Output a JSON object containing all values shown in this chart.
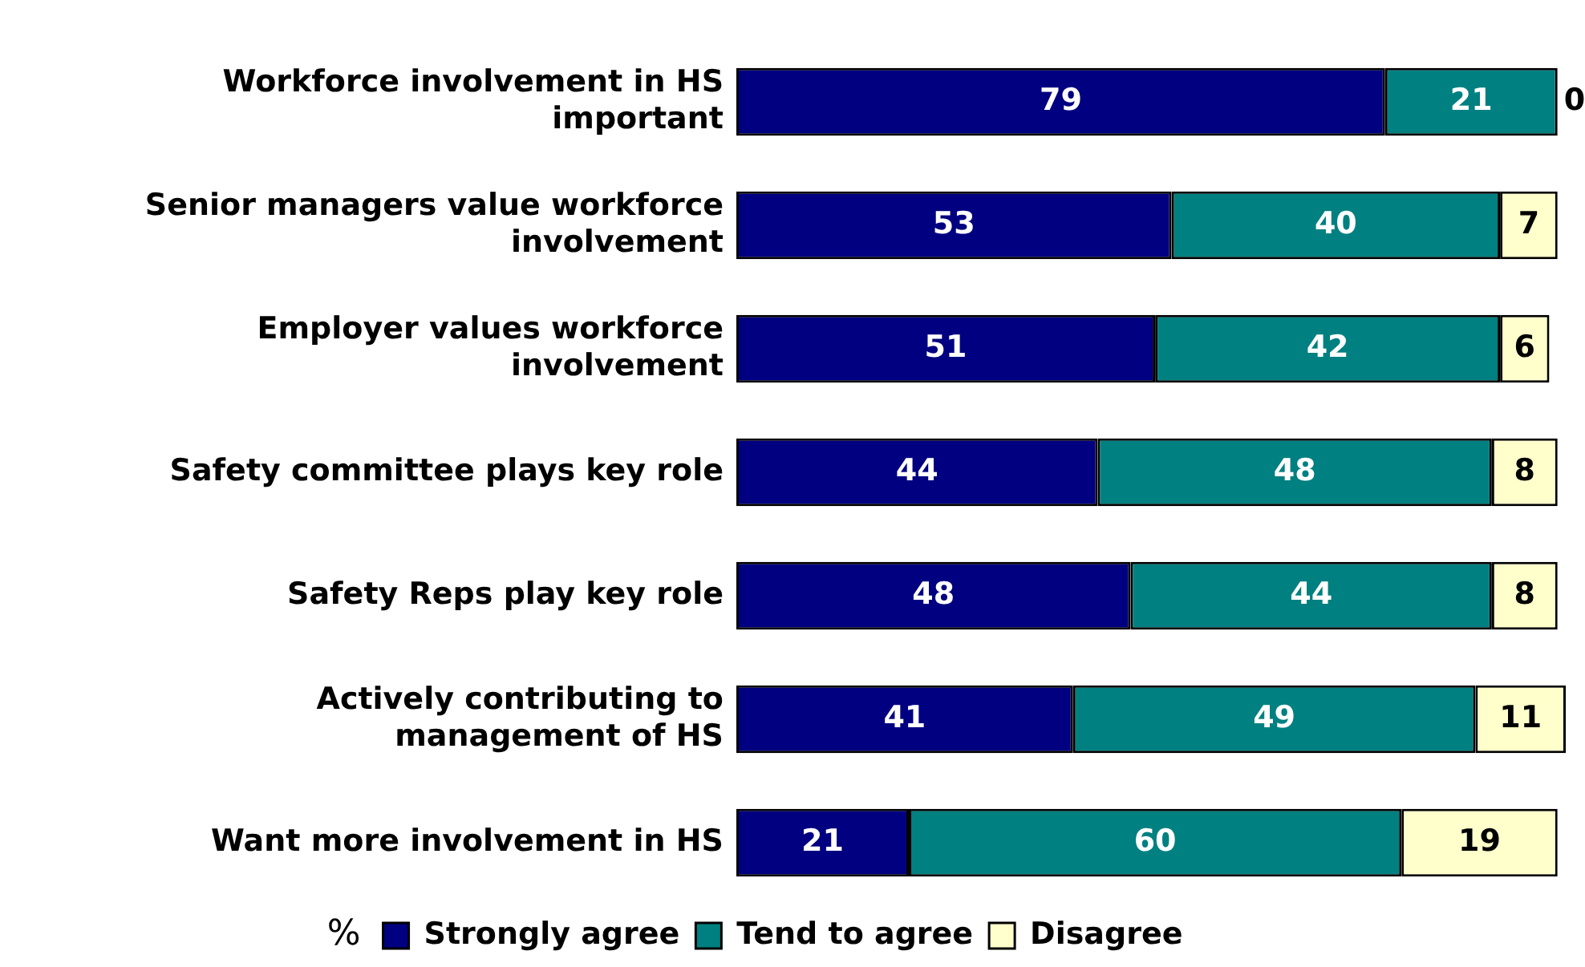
{
  "chart_data": {
    "type": "bar",
    "orientation": "horizontal",
    "stacked": true,
    "xlabel": "%",
    "categories": [
      "Workforce involvement in HS important",
      "Senior managers value workforce involvement",
      "Employer values workforce involvement",
      "Safety committee plays key role",
      "Safety Reps play key role",
      "Actively contributing to management of HS",
      "Want more involvement in HS"
    ],
    "series": [
      {
        "name": "Strongly agree",
        "color": "#000080",
        "values": [
          79,
          53,
          51,
          44,
          48,
          41,
          21
        ]
      },
      {
        "name": "Tend to agree",
        "color": "#008080",
        "values": [
          21,
          40,
          42,
          48,
          44,
          49,
          60
        ]
      },
      {
        "name": "Disagree",
        "color": "#ffffcc",
        "values": [
          0,
          7,
          6,
          8,
          8,
          11,
          19
        ]
      }
    ],
    "xlim": [
      0,
      101
    ],
    "tick_labels": "y",
    "data_labels": true,
    "legend": "bottom"
  }
}
